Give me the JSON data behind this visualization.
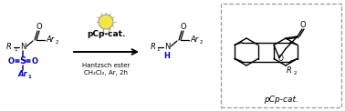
{
  "bg_color": "#ffffff",
  "black": "#000000",
  "blue": "#0000cc",
  "gray": "#888888",
  "arrow_text_top": "pCp-cat.",
  "arrow_text_bottom1": "Hantzsch ester",
  "arrow_text_bottom2": "CH₂Cl₂, Ar, 2h",
  "box_label": "pCp-cat.",
  "fs": 6.0,
  "fs_small": 5.0,
  "fs_title": 6.5,
  "fs_super": 4.5
}
